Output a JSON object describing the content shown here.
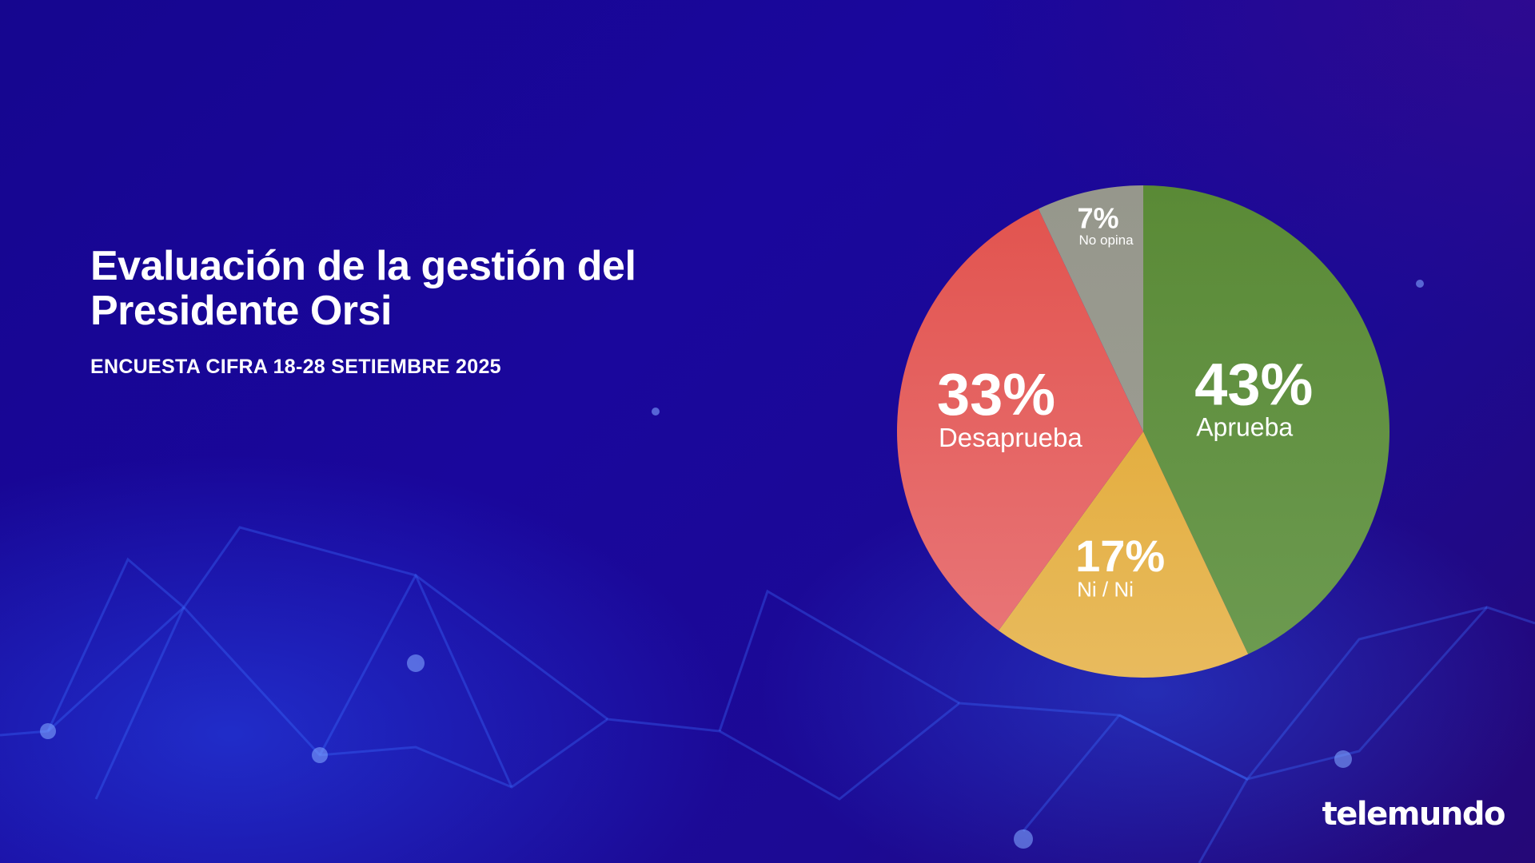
{
  "header": {
    "title": "Evaluación de la gestión del Presidente Orsi",
    "subtitle": "ENCUESTA CIFRA 18-28 SETIEMBRE 2025"
  },
  "brand": {
    "logo_text": "telemundo"
  },
  "chart_data": {
    "type": "pie",
    "title": "Evaluación de la gestión del Presidente Orsi",
    "subtitle": "ENCUESTA CIFRA 18-28 SETIEMBRE 2025",
    "start": "12 o'clock",
    "direction": "clockwise",
    "slices": [
      {
        "label": "Aprueba",
        "value": 43,
        "display": "43%",
        "color": "#5a8a36",
        "color_light": "#6c9a50"
      },
      {
        "label": "Ni / Ni",
        "value": 17,
        "display": "17%",
        "color": "#e4ae40",
        "color_light": "#e8bb5e"
      },
      {
        "label": "Desaprueba",
        "value": 33,
        "display": "33%",
        "color": "#e2544f",
        "color_light": "#e87476"
      },
      {
        "label": "No opina",
        "value": 7,
        "display": "7%",
        "color": "#96978c",
        "color_light": "#9a9b90"
      }
    ]
  },
  "colors": {
    "background": "#1a079c",
    "text": "#ffffff"
  }
}
